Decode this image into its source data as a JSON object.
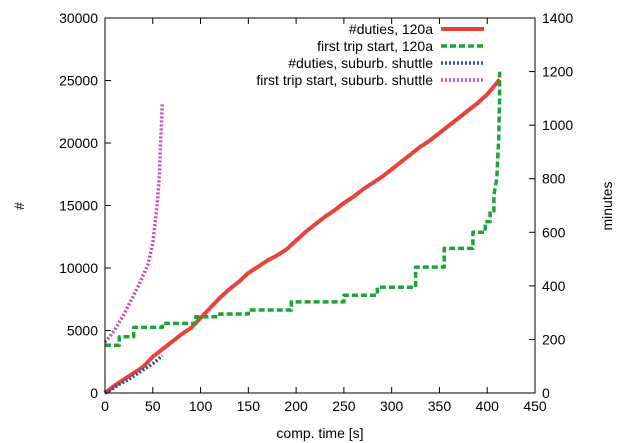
{
  "chart_data": {
    "type": "line",
    "title": "",
    "xlabel": "comp. time [s]",
    "ylabel": "#",
    "y2label": "minutes",
    "xlim": [
      0,
      450
    ],
    "ylim": [
      0,
      30000
    ],
    "y2lim": [
      0,
      1400
    ],
    "xticks": [
      0,
      50,
      100,
      150,
      200,
      250,
      300,
      350,
      400,
      450
    ],
    "yticks": [
      0,
      5000,
      10000,
      15000,
      20000,
      25000,
      30000
    ],
    "y2ticks": [
      0,
      200,
      400,
      600,
      800,
      1000,
      1200,
      1400
    ],
    "grid": false,
    "legend_position": "top-right",
    "series": [
      {
        "name": "#duties, 120a",
        "axis": "left",
        "color": "#e8433b",
        "style": "solid",
        "x": [
          0,
          5,
          10,
          20,
          30,
          40,
          50,
          60,
          70,
          80,
          90,
          100,
          110,
          120,
          130,
          140,
          150,
          160,
          170,
          180,
          190,
          200,
          210,
          220,
          230,
          240,
          250,
          260,
          270,
          280,
          290,
          300,
          310,
          320,
          330,
          340,
          350,
          360,
          370,
          380,
          390,
          400,
          410,
          413
        ],
        "y": [
          0,
          300,
          600,
          1100,
          1600,
          2100,
          2900,
          3500,
          4100,
          4700,
          5200,
          6000,
          6800,
          7600,
          8300,
          8900,
          9600,
          10100,
          10600,
          11000,
          11500,
          12200,
          12900,
          13500,
          14100,
          14600,
          15200,
          15700,
          16300,
          16800,
          17300,
          17900,
          18500,
          19100,
          19700,
          20200,
          20800,
          21400,
          22000,
          22600,
          23200,
          23900,
          24800,
          25100
        ]
      },
      {
        "name": "first trip start, 120a",
        "axis": "right",
        "color": "#1ea33b",
        "style": "dashed",
        "x": [
          0,
          15,
          15,
          30,
          30,
          60,
          60,
          95,
          95,
          120,
          120,
          150,
          150,
          195,
          195,
          250,
          250,
          285,
          285,
          325,
          325,
          355,
          355,
          385,
          385,
          398,
          398,
          403,
          403,
          407,
          407,
          410,
          412,
          413,
          413
        ],
        "y": [
          178,
          178,
          210,
          210,
          245,
          245,
          260,
          260,
          285,
          285,
          295,
          295,
          310,
          310,
          340,
          340,
          365,
          365,
          395,
          395,
          470,
          470,
          540,
          540,
          600,
          600,
          640,
          640,
          680,
          680,
          740,
          800,
          950,
          1100,
          1200
        ]
      },
      {
        "name": "#duties, suburb. shuttle",
        "axis": "left",
        "color": "#2a4fb0",
        "style": "dotted",
        "x": [
          0,
          5,
          10,
          15,
          20,
          25,
          30,
          35,
          40,
          45,
          50,
          55,
          60
        ],
        "y": [
          0,
          200,
          450,
          700,
          900,
          1100,
          1350,
          1600,
          1850,
          2100,
          2350,
          2650,
          3000
        ]
      },
      {
        "name": "first trip start, suburb. shuttle",
        "axis": "right",
        "color": "#c04dbf",
        "style": "dotted",
        "x": [
          0,
          5,
          10,
          15,
          20,
          25,
          30,
          35,
          40,
          45,
          50,
          52,
          55,
          57,
          58,
          59,
          60
        ],
        "y": [
          190,
          210,
          235,
          265,
          295,
          330,
          365,
          400,
          440,
          480,
          560,
          620,
          720,
          820,
          920,
          1000,
          1080
        ]
      }
    ]
  }
}
